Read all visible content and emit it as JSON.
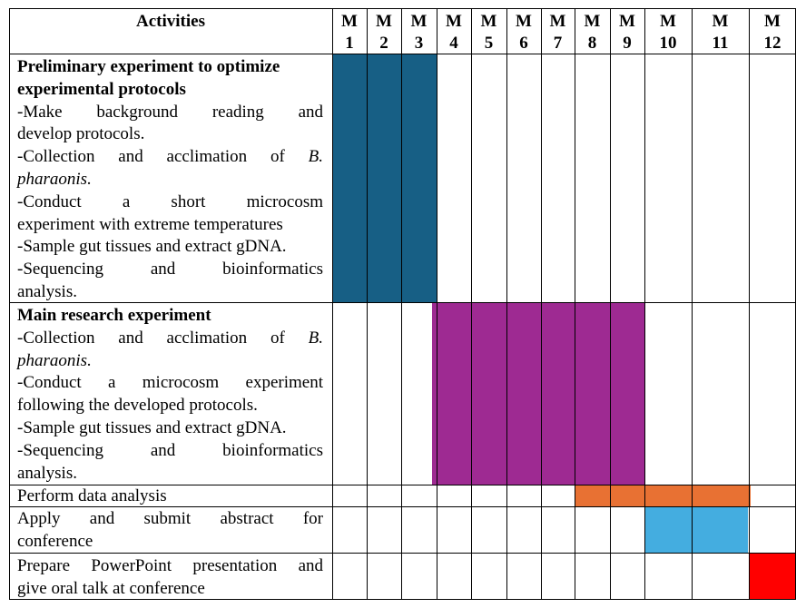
{
  "header": {
    "activities": "Activities",
    "months": [
      {
        "top": "M",
        "num": "1"
      },
      {
        "top": "M",
        "num": "2"
      },
      {
        "top": "M",
        "num": "3"
      },
      {
        "top": "M",
        "num": "4"
      },
      {
        "top": "M",
        "num": "5"
      },
      {
        "top": "M",
        "num": "6"
      },
      {
        "top": "M",
        "num": "7"
      },
      {
        "top": "M",
        "num": "8"
      },
      {
        "top": "M",
        "num": "9"
      },
      {
        "top": "M",
        "num": "10"
      },
      {
        "top": "M",
        "num": "11"
      },
      {
        "top": "M",
        "num": "12"
      }
    ]
  },
  "rows": [
    {
      "title": "Preliminary experiment to optimize",
      "title2": "experimental protocols",
      "lines": [
        "-Make background reading and",
        "develop protocols.",
        "-Collection and acclimation of B.",
        "pharaonis.",
        "-Conduct a short microcosm",
        "experiment with extreme temperatures",
        "-Sample gut tissues and extract gDNA.",
        "-Sequencing and bioinformatics",
        "analysis."
      ],
      "start_month": 1,
      "end_month": 3,
      "color": "#175F85"
    },
    {
      "title": "Main research experiment",
      "lines": [
        "-Collection and acclimation of B.",
        "pharaonis.",
        "-Conduct a microcosm experiment",
        "following the developed protocols.",
        "-Sample gut tissues and extract gDNA.",
        "-Sequencing and bioinformatics",
        "analysis."
      ],
      "start_month": 4,
      "end_month": 9,
      "color": "#9E2A92"
    },
    {
      "lines": [
        "Perform data analysis"
      ],
      "start_month": 8,
      "end_month": 11,
      "color": "#E87133"
    },
    {
      "lines": [
        "Apply and submit abstract for",
        "conference"
      ],
      "start_month": 10,
      "end_month": 11,
      "color": "#44ADE0"
    },
    {
      "lines": [
        "Prepare PowerPoint presentation and",
        "give oral talk at conference"
      ],
      "start_month": 12,
      "end_month": 12,
      "color": "#FF0000"
    }
  ]
}
